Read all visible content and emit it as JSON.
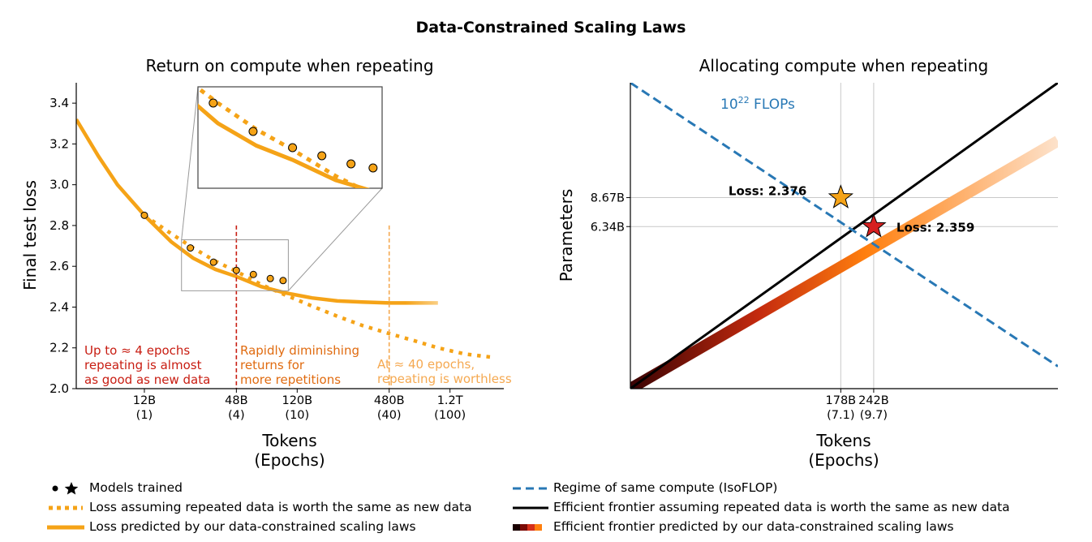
{
  "figure_title": "Data-Constrained Scaling Laws",
  "colors": {
    "orange": "#f5a317",
    "red_annot": "#c81d12",
    "orange_dark_annot": "#e06b10",
    "orange_light_annot": "#f5a951",
    "blue": "#2878b5",
    "frontier_dark": "#3a0303",
    "frontier_mid": "#c42a0e",
    "frontier_orange": "#ff7f0e",
    "frontier_light": "#fde2cb",
    "star_gold": "#f5a317",
    "star_red": "#d62020"
  },
  "chart_data": [
    {
      "type": "line",
      "title": "Return on compute when repeating",
      "xlabel": "Tokens\n(Epochs)",
      "ylabel": "Final test loss",
      "x_scale": "log",
      "x_unit": "billion tokens",
      "xlim": [
        4.3,
        2700
      ],
      "ylim": [
        2.0,
        3.5
      ],
      "yticks": [
        2.0,
        2.2,
        2.4,
        2.6,
        2.8,
        3.0,
        3.2,
        3.4
      ],
      "ytick_labels": [
        "2.0",
        "2.2",
        "2.4",
        "2.6",
        "2.8",
        "3.0",
        "3.2",
        "3.4"
      ],
      "xticks": [
        12,
        48,
        120,
        480,
        1200
      ],
      "xtick_labels": [
        "12B\n(1)",
        "48B\n(4)",
        "120B\n(10)",
        "480B\n(40)",
        "1.2T\n(100)"
      ],
      "series": [
        {
          "style": "solid",
          "x": [
            4.3,
            6,
            8,
            12,
            18,
            25,
            35,
            48,
            70,
            100,
            150,
            220,
            320,
            480,
            700,
            1000
          ],
          "y": [
            3.32,
            3.14,
            3.0,
            2.85,
            2.72,
            2.64,
            2.585,
            2.55,
            2.5,
            2.47,
            2.445,
            2.43,
            2.425,
            2.42,
            2.42,
            2.42
          ]
        },
        {
          "style": "dotted",
          "x": [
            12,
            18,
            25,
            35,
            48,
            70,
            100,
            150,
            220,
            320,
            480,
            700,
            1000,
            1500,
            2200
          ],
          "y": [
            2.85,
            2.76,
            2.69,
            2.625,
            2.575,
            2.51,
            2.46,
            2.405,
            2.355,
            2.31,
            2.27,
            2.235,
            2.2,
            2.17,
            2.155
          ]
        },
        {
          "style": "markers",
          "x": [
            12,
            24,
            34,
            48,
            62,
            80,
            97
          ],
          "y": [
            2.85,
            2.69,
            2.62,
            2.58,
            2.56,
            2.54,
            2.53
          ]
        }
      ],
      "vlines": [
        {
          "x": 48,
          "y_top": 2.8,
          "color": "red_annot"
        },
        {
          "x": 480,
          "y_top": 2.8,
          "color": "orange_light_annot"
        }
      ],
      "annotations": [
        {
          "lines": [
            "Up to ≈ 4 epochs",
            "repeating is almost",
            "as good as new data"
          ],
          "color": "red_annot"
        },
        {
          "lines": [
            "Rapidly diminishing",
            "returns for",
            "more repetitions"
          ],
          "color": "orange_dark_annot"
        },
        {
          "lines": [
            "At ≈ 40 epochs,",
            "repeating is worthless"
          ],
          "color": "orange_light_annot"
        }
      ],
      "inset": {
        "x_range": [
          21,
          105
        ],
        "y_range": [
          2.48,
          2.73
        ]
      }
    },
    {
      "type": "line",
      "title": "Allocating compute when repeating",
      "xlabel": "Tokens\n(Epochs)",
      "ylabel": "Parameters",
      "x_scale": "log",
      "y_scale": "log",
      "x_unit": "billion tokens",
      "y_unit": "billion parameters",
      "xlim": [
        25,
        1350
      ],
      "ylim": [
        1.1,
        30
      ],
      "xticks": [
        178,
        242
      ],
      "xtick_labels": [
        "178B\n(7.1)",
        "242B\n(9.7)"
      ],
      "yticks": [
        6.34,
        8.67
      ],
      "ytick_labels": [
        "6.34B",
        "8.67B"
      ],
      "isoflop": {
        "label_base": "10",
        "label_exp": "22",
        "label_unit": "FLOPs",
        "x": [
          25,
          1350
        ],
        "y": [
          30,
          1.4
        ]
      },
      "frontier_same": {
        "x": [
          25,
          1350
        ],
        "y": [
          1.1,
          30
        ]
      },
      "frontier_constrained": {
        "x": [
          25,
          1350
        ],
        "y": [
          1.1,
          16
        ]
      },
      "points": [
        {
          "label": "Loss: 2.376",
          "x": 178,
          "y": 8.67,
          "marker": "star",
          "color": "star_gold"
        },
        {
          "label": "Loss: 2.359",
          "x": 242,
          "y": 6.34,
          "marker": "star",
          "color": "star_red"
        }
      ]
    }
  ],
  "legend_left": [
    {
      "text": "Models trained",
      "symbol": "markers-star"
    },
    {
      "text": "Loss assuming repeated data is worth the same as new data",
      "symbol": "dotted-orange"
    },
    {
      "text": "Loss predicted by our data-constrained scaling laws",
      "symbol": "solid-orange"
    }
  ],
  "legend_right": [
    {
      "text": "Regime of same compute (IsoFLOP)",
      "symbol": "dashed-blue"
    },
    {
      "text": "Efficient frontier assuming repeated data is worth the same as new data",
      "symbol": "solid-black"
    },
    {
      "text": "Efficient frontier predicted by our data-constrained scaling laws",
      "symbol": "gradient-bar"
    }
  ]
}
